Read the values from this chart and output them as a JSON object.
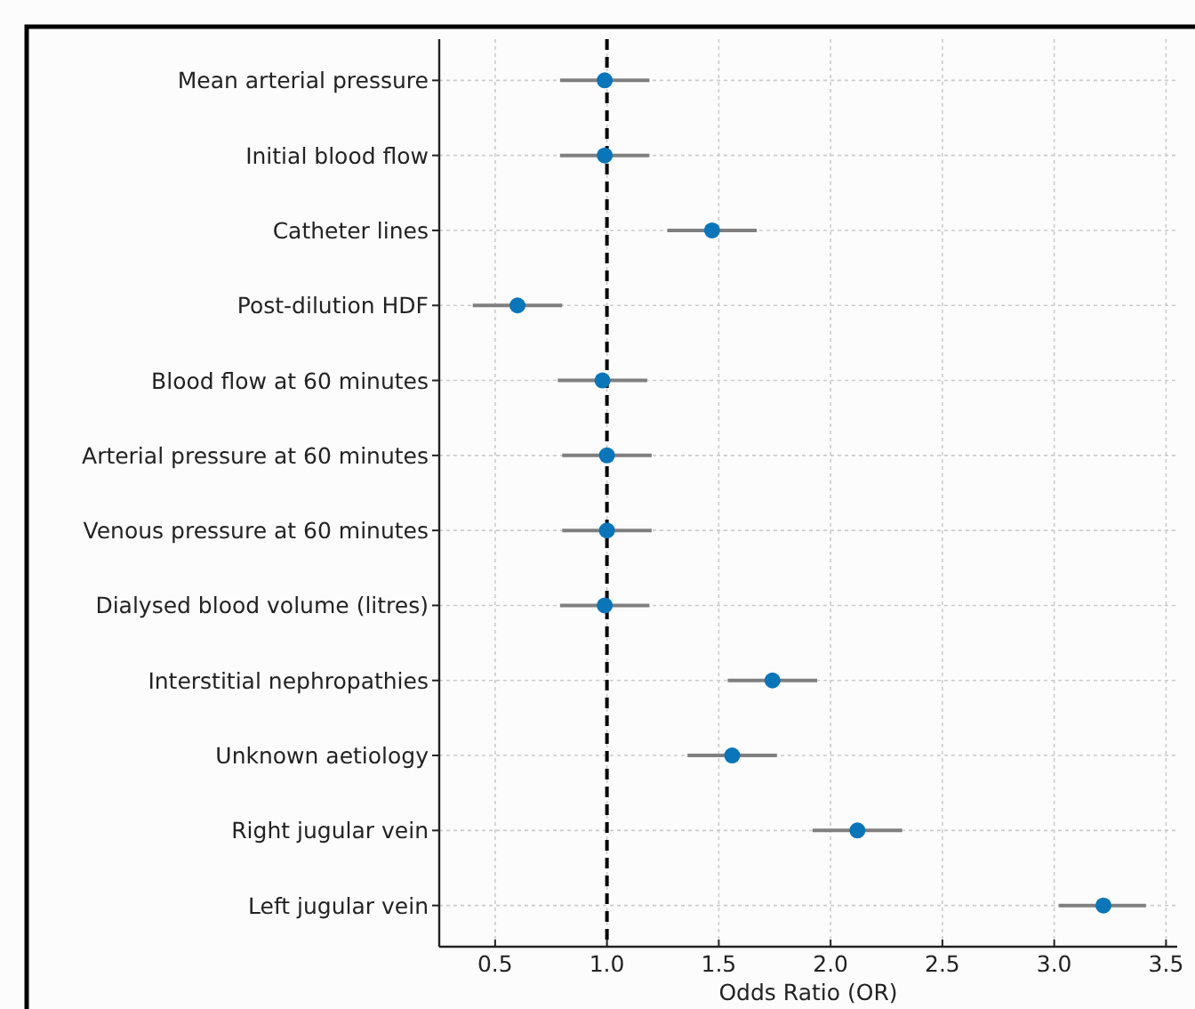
{
  "chart_data": {
    "type": "scatter",
    "orientation": "horizontal",
    "xlabel": "Odds Ratio (OR)",
    "categories": [
      "Mean arterial pressure",
      "Initial blood flow",
      "Catheter lines",
      "Post-dilution HDF",
      "Blood flow at 60 minutes",
      "Arterial pressure at 60 minutes",
      "Venous pressure at 60 minutes",
      "Dialysed blood volume (litres)",
      "Interstitial nephropathies",
      "Unknown aetiology",
      "Right jugular vein",
      "Left jugular vein"
    ],
    "series": [
      {
        "color": "#0a75b8",
        "values": [
          0.99,
          0.99,
          1.47,
          0.6,
          0.98,
          1.0,
          1.0,
          0.99,
          1.74,
          1.56,
          2.12,
          3.22
        ],
        "errors": [
          [
            0.79,
            1.19
          ],
          [
            0.79,
            1.19
          ],
          [
            1.27,
            1.67
          ],
          [
            0.4,
            0.8
          ],
          [
            0.78,
            1.18
          ],
          [
            0.8,
            1.2
          ],
          [
            0.8,
            1.2
          ],
          [
            0.79,
            1.19
          ],
          [
            1.54,
            1.94
          ],
          [
            1.36,
            1.76
          ],
          [
            1.92,
            2.32
          ],
          [
            3.02,
            3.41
          ]
        ]
      }
    ],
    "xlim": [
      0.25,
      3.55
    ],
    "xticks": [
      {
        "value": 0.5,
        "label": "0.5"
      },
      {
        "value": 1,
        "label": "1.0"
      },
      {
        "value": 1.5,
        "label": "1.5"
      },
      {
        "value": 2,
        "label": "2.0"
      },
      {
        "value": 2.5,
        "label": "2.5"
      },
      {
        "value": 3,
        "label": "3.0"
      },
      {
        "value": 3.5,
        "label": "3.5"
      }
    ],
    "ref_lines": [
      {
        "axis": "x",
        "value": 1,
        "color": "#000000",
        "line_style": "dashed"
      }
    ],
    "grid": true,
    "marker": "circle"
  }
}
